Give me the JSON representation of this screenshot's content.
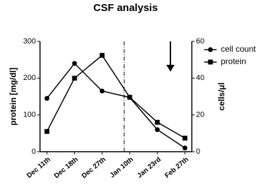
{
  "chart_data": {
    "type": "line",
    "title": "CSF analysis",
    "categories": [
      "Dec 11th",
      "Dec 18th",
      "Dec 27th",
      "Jan 10th",
      "Jan 23rd",
      "Feb 27th"
    ],
    "series": [
      {
        "name": "cell count",
        "color": "#000000",
        "marker": "circle",
        "axis": "y2",
        "values": [
          29,
          48,
          33,
          29.5,
          12,
          2
        ]
      },
      {
        "name": "protein",
        "color": "#000000",
        "marker": "square",
        "values": [
          55,
          200,
          262,
          148,
          80,
          37
        ]
      }
    ],
    "ylabel": "protein [mg/dl]",
    "y2label": "cells/μl",
    "ylim": [
      0,
      300
    ],
    "yticks": [
      0,
      100,
      200,
      300
    ],
    "y2lim": [
      0,
      60
    ],
    "y2ticks": [
      0,
      20,
      40,
      60
    ],
    "legend": "top-right"
  }
}
